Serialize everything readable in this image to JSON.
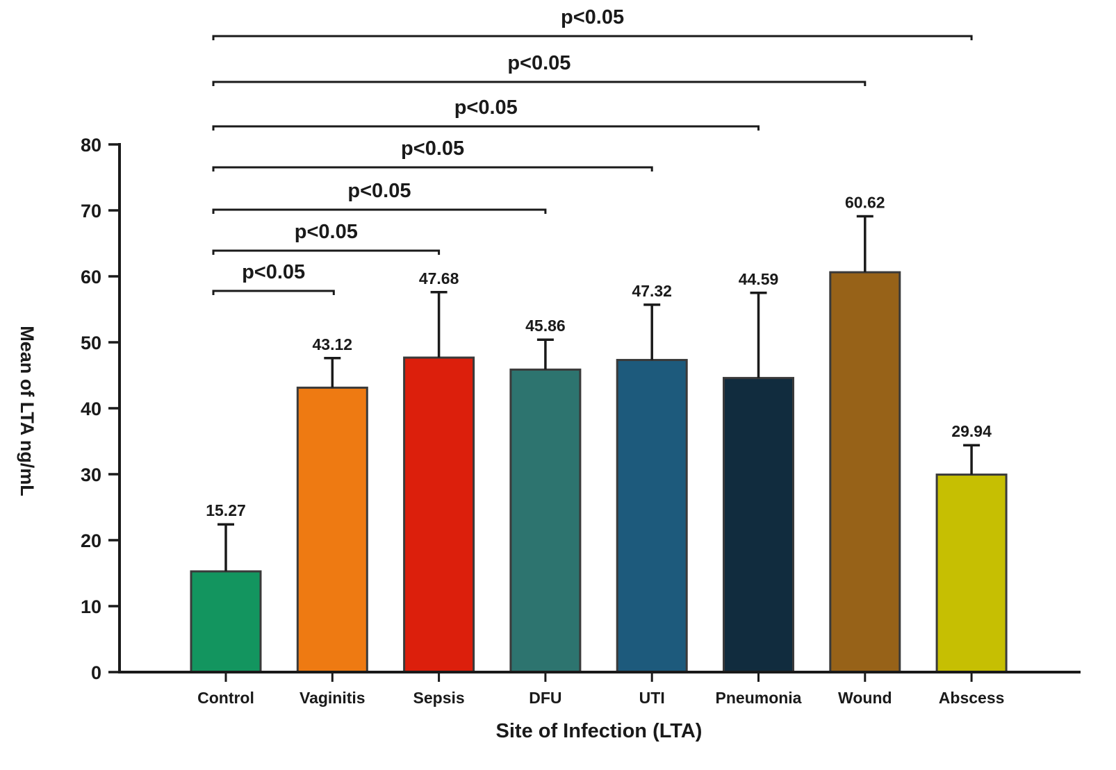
{
  "chart_data": {
    "type": "bar",
    "title": "",
    "xlabel": "Site of Infection (LTA)",
    "ylabel": "Mean of LTA ng/mL",
    "ylim": [
      0,
      80
    ],
    "yticks": [
      0,
      10,
      20,
      30,
      40,
      50,
      60,
      70,
      80
    ],
    "grid": false,
    "categories": [
      "Control",
      "Vaginitis",
      "Sepsis",
      "DFU",
      "UTI",
      "Pneumonia",
      "Wound",
      "Abscess"
    ],
    "values": [
      15.27,
      43.12,
      47.68,
      45.86,
      47.32,
      44.59,
      60.62,
      29.94
    ],
    "value_labels": [
      "15.27",
      "43.12",
      "47.68",
      "45.86",
      "47.32",
      "44.59",
      "60.62",
      "29.94"
    ],
    "error_upper": [
      22.4,
      47.6,
      57.6,
      50.4,
      55.7,
      57.5,
      69.1,
      34.4
    ],
    "colors": [
      "#13955f",
      "#ee7a12",
      "#dc1f0c",
      "#2d746f",
      "#1d5a7c",
      "#112c3e",
      "#976218",
      "#c6bf02"
    ],
    "significance": [
      {
        "from": "Control",
        "to": "Vaginitis",
        "label": "p<0.05"
      },
      {
        "from": "Control",
        "to": "Sepsis",
        "label": "p<0.05"
      },
      {
        "from": "Control",
        "to": "DFU",
        "label": "p<0.05"
      },
      {
        "from": "Control",
        "to": "UTI",
        "label": "p<0.05"
      },
      {
        "from": "Control",
        "to": "Pneumonia",
        "label": "p<0.05"
      },
      {
        "from": "Control",
        "to": "Wound",
        "label": "p<0.05"
      },
      {
        "from": "Control",
        "to": "Abscess",
        "label": "p<0.05"
      }
    ]
  }
}
